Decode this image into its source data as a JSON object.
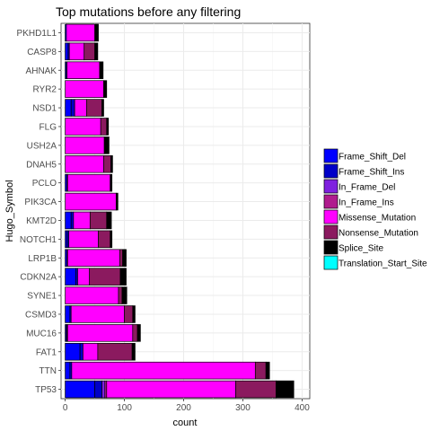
{
  "chart_data": {
    "type": "bar",
    "orientation": "horizontal",
    "stacked": true,
    "title": "Top mutations before any filtering",
    "xlabel": "count",
    "ylabel": "Hugo_Symbol",
    "xlim": [
      0,
      400
    ],
    "xticks": [
      0,
      100,
      200,
      300,
      400
    ],
    "grid": true,
    "legend_position": "right",
    "categories": [
      "TP53",
      "TTN",
      "FAT1",
      "MUC16",
      "CSMD3",
      "SYNE1",
      "CDKN2A",
      "LRP1B",
      "NOTCH1",
      "KMT2D",
      "PIK3CA",
      "PCLO",
      "DNAH5",
      "USH2A",
      "FLG",
      "NSD1",
      "RYR2",
      "AHNAK",
      "CASP8",
      "PKHD1L1"
    ],
    "series": [
      {
        "name": "Frame_Shift_Del",
        "color": "#0000ff",
        "values": [
          50,
          8,
          25,
          2,
          8,
          0,
          18,
          3,
          3,
          10,
          0,
          3,
          0,
          0,
          0,
          10,
          0,
          2,
          5,
          2
        ]
      },
      {
        "name": "Frame_Shift_Ins",
        "color": "#0000c8",
        "values": [
          12,
          3,
          5,
          1,
          2,
          0,
          3,
          1,
          3,
          4,
          0,
          1,
          0,
          0,
          0,
          6,
          0,
          1,
          2,
          0
        ]
      },
      {
        "name": "In_Frame_Del",
        "color": "#7f20df",
        "values": [
          5,
          0,
          0,
          1,
          0,
          0,
          0,
          0,
          0,
          0,
          0,
          0,
          0,
          0,
          0,
          0,
          0,
          0,
          0,
          0
        ]
      },
      {
        "name": "In_Frame_Ins",
        "color": "#b01b8e",
        "values": [
          3,
          0,
          0,
          0,
          0,
          0,
          0,
          0,
          0,
          0,
          0,
          0,
          0,
          0,
          0,
          0,
          0,
          0,
          0,
          0
        ]
      },
      {
        "name": "Missense_Mutation",
        "color": "#ff00ff",
        "values": [
          218,
          310,
          25,
          110,
          90,
          90,
          20,
          88,
          50,
          28,
          86,
          72,
          65,
          66,
          60,
          20,
          65,
          55,
          25,
          48
        ]
      },
      {
        "name": "Nonsense_Mutation",
        "color": "#8b1a5f",
        "values": [
          68,
          18,
          58,
          8,
          14,
          6,
          52,
          5,
          20,
          28,
          0,
          0,
          12,
          0,
          10,
          26,
          0,
          0,
          18,
          0
        ]
      },
      {
        "name": "Splice_Site",
        "color": "#000000",
        "values": [
          30,
          6,
          5,
          5,
          4,
          8,
          10,
          6,
          3,
          8,
          3,
          3,
          3,
          8,
          3,
          3,
          5,
          6,
          5,
          6
        ]
      },
      {
        "name": "Translation_Start_Site",
        "color": "#00ffff",
        "values": [
          0,
          0,
          0,
          0,
          0,
          0,
          0,
          0,
          0,
          0,
          0,
          0,
          0,
          0,
          0,
          0,
          0,
          0,
          0,
          0
        ]
      }
    ]
  }
}
